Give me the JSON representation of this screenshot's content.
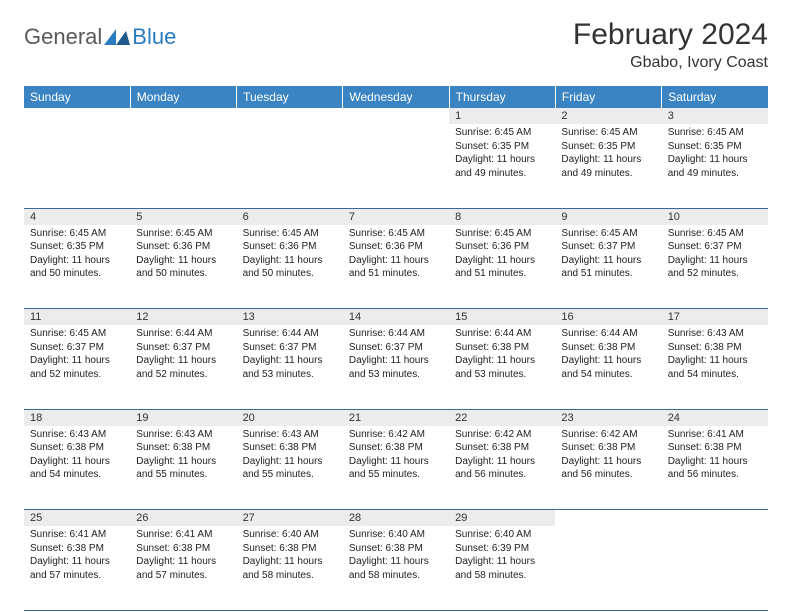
{
  "logo": {
    "general": "General",
    "blue": "Blue"
  },
  "title": "February 2024",
  "location": "Gbabo, Ivory Coast",
  "colors": {
    "header_bg": "#3b84c4",
    "header_text": "#ffffff",
    "daynum_bg": "#ececec",
    "row_divider": "#3b6a99",
    "body_text": "#222222",
    "title_text": "#333333",
    "logo_gray": "#5a5a5a",
    "logo_blue": "#2a7bbf"
  },
  "day_headers": [
    "Sunday",
    "Monday",
    "Tuesday",
    "Wednesday",
    "Thursday",
    "Friday",
    "Saturday"
  ],
  "weeks": [
    {
      "nums": [
        "",
        "",
        "",
        "",
        "1",
        "2",
        "3"
      ],
      "cells": [
        null,
        null,
        null,
        null,
        {
          "sunrise": "6:45 AM",
          "sunset": "6:35 PM",
          "daylight": "11 hours and 49 minutes."
        },
        {
          "sunrise": "6:45 AM",
          "sunset": "6:35 PM",
          "daylight": "11 hours and 49 minutes."
        },
        {
          "sunrise": "6:45 AM",
          "sunset": "6:35 PM",
          "daylight": "11 hours and 49 minutes."
        }
      ]
    },
    {
      "nums": [
        "4",
        "5",
        "6",
        "7",
        "8",
        "9",
        "10"
      ],
      "cells": [
        {
          "sunrise": "6:45 AM",
          "sunset": "6:35 PM",
          "daylight": "11 hours and 50 minutes."
        },
        {
          "sunrise": "6:45 AM",
          "sunset": "6:36 PM",
          "daylight": "11 hours and 50 minutes."
        },
        {
          "sunrise": "6:45 AM",
          "sunset": "6:36 PM",
          "daylight": "11 hours and 50 minutes."
        },
        {
          "sunrise": "6:45 AM",
          "sunset": "6:36 PM",
          "daylight": "11 hours and 51 minutes."
        },
        {
          "sunrise": "6:45 AM",
          "sunset": "6:36 PM",
          "daylight": "11 hours and 51 minutes."
        },
        {
          "sunrise": "6:45 AM",
          "sunset": "6:37 PM",
          "daylight": "11 hours and 51 minutes."
        },
        {
          "sunrise": "6:45 AM",
          "sunset": "6:37 PM",
          "daylight": "11 hours and 52 minutes."
        }
      ]
    },
    {
      "nums": [
        "11",
        "12",
        "13",
        "14",
        "15",
        "16",
        "17"
      ],
      "cells": [
        {
          "sunrise": "6:45 AM",
          "sunset": "6:37 PM",
          "daylight": "11 hours and 52 minutes."
        },
        {
          "sunrise": "6:44 AM",
          "sunset": "6:37 PM",
          "daylight": "11 hours and 52 minutes."
        },
        {
          "sunrise": "6:44 AM",
          "sunset": "6:37 PM",
          "daylight": "11 hours and 53 minutes."
        },
        {
          "sunrise": "6:44 AM",
          "sunset": "6:37 PM",
          "daylight": "11 hours and 53 minutes."
        },
        {
          "sunrise": "6:44 AM",
          "sunset": "6:38 PM",
          "daylight": "11 hours and 53 minutes."
        },
        {
          "sunrise": "6:44 AM",
          "sunset": "6:38 PM",
          "daylight": "11 hours and 54 minutes."
        },
        {
          "sunrise": "6:43 AM",
          "sunset": "6:38 PM",
          "daylight": "11 hours and 54 minutes."
        }
      ]
    },
    {
      "nums": [
        "18",
        "19",
        "20",
        "21",
        "22",
        "23",
        "24"
      ],
      "cells": [
        {
          "sunrise": "6:43 AM",
          "sunset": "6:38 PM",
          "daylight": "11 hours and 54 minutes."
        },
        {
          "sunrise": "6:43 AM",
          "sunset": "6:38 PM",
          "daylight": "11 hours and 55 minutes."
        },
        {
          "sunrise": "6:43 AM",
          "sunset": "6:38 PM",
          "daylight": "11 hours and 55 minutes."
        },
        {
          "sunrise": "6:42 AM",
          "sunset": "6:38 PM",
          "daylight": "11 hours and 55 minutes."
        },
        {
          "sunrise": "6:42 AM",
          "sunset": "6:38 PM",
          "daylight": "11 hours and 56 minutes."
        },
        {
          "sunrise": "6:42 AM",
          "sunset": "6:38 PM",
          "daylight": "11 hours and 56 minutes."
        },
        {
          "sunrise": "6:41 AM",
          "sunset": "6:38 PM",
          "daylight": "11 hours and 56 minutes."
        }
      ]
    },
    {
      "nums": [
        "25",
        "26",
        "27",
        "28",
        "29",
        "",
        ""
      ],
      "cells": [
        {
          "sunrise": "6:41 AM",
          "sunset": "6:38 PM",
          "daylight": "11 hours and 57 minutes."
        },
        {
          "sunrise": "6:41 AM",
          "sunset": "6:38 PM",
          "daylight": "11 hours and 57 minutes."
        },
        {
          "sunrise": "6:40 AM",
          "sunset": "6:38 PM",
          "daylight": "11 hours and 58 minutes."
        },
        {
          "sunrise": "6:40 AM",
          "sunset": "6:38 PM",
          "daylight": "11 hours and 58 minutes."
        },
        {
          "sunrise": "6:40 AM",
          "sunset": "6:39 PM",
          "daylight": "11 hours and 58 minutes."
        },
        null,
        null
      ]
    }
  ],
  "labels": {
    "sunrise": "Sunrise:",
    "sunset": "Sunset:",
    "daylight": "Daylight:"
  }
}
